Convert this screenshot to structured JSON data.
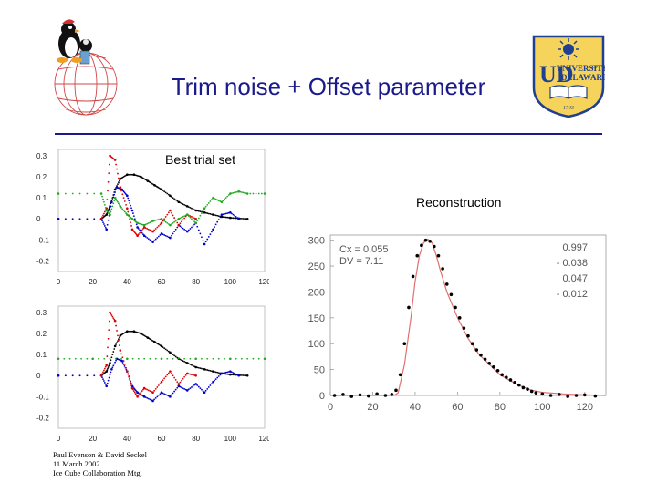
{
  "slide": {
    "title": "Trim noise + Offset parameter",
    "caption_best": "Best trial set",
    "caption_recon": "Reconstruction",
    "footer": [
      "Paul Evenson & David Seckel",
      "11 March 2002",
      "Ice Cube Collaboration Mtg."
    ]
  },
  "logo_right": {
    "words": [
      "UNIVERSITY",
      "OF",
      "DELAWARE"
    ],
    "year": "1743",
    "colors": {
      "blue": "#1f3f8f",
      "gold": "#f2c230"
    }
  },
  "chart_data": [
    {
      "type": "scatter",
      "title": "",
      "xlim": [
        0,
        120
      ],
      "ylim": [
        -0.25,
        0.33
      ],
      "x_ticks": [
        "0",
        "20",
        "40",
        "60",
        "80",
        "100",
        "120"
      ],
      "y_ticks": [
        "0.3",
        "0.2",
        "0.1",
        "0",
        "-0.1",
        "-0.2"
      ],
      "series": [
        {
          "color": "#000000",
          "x": [
            0,
            25,
            28,
            30,
            33,
            36,
            40,
            44,
            48,
            52,
            56,
            60,
            65,
            70,
            75,
            80,
            85,
            90,
            95,
            100,
            105,
            110
          ],
          "y": [
            0,
            0,
            0.02,
            0.06,
            0.14,
            0.19,
            0.21,
            0.21,
            0.2,
            0.18,
            0.16,
            0.14,
            0.11,
            0.08,
            0.06,
            0.04,
            0.03,
            0.02,
            0.01,
            0.005,
            0.002,
            0
          ]
        },
        {
          "color": "#0000cc",
          "x": [
            0,
            25,
            28,
            31,
            34,
            37,
            40,
            43,
            46,
            50,
            55,
            60,
            65,
            70,
            75,
            80,
            85,
            90,
            95,
            100,
            105
          ],
          "y": [
            0,
            0,
            -0.05,
            0.08,
            0.15,
            0.14,
            0.11,
            0.04,
            -0.04,
            -0.08,
            -0.11,
            -0.07,
            -0.09,
            -0.03,
            -0.06,
            -0.02,
            -0.12,
            -0.05,
            0.02,
            0.03,
            0
          ]
        },
        {
          "color": "#dd0000",
          "x": [
            25,
            28,
            30,
            33,
            36,
            40,
            43,
            46,
            50,
            55,
            60,
            65,
            70,
            75,
            80
          ],
          "y": [
            0,
            0.05,
            0.3,
            0.28,
            0.15,
            0.05,
            -0.05,
            -0.08,
            -0.04,
            -0.06,
            -0.02,
            0.04,
            -0.03,
            0.02,
            0
          ]
        },
        {
          "color": "#22aa22",
          "x": [
            0,
            25,
            28,
            30,
            33,
            36,
            40,
            43,
            46,
            50,
            55,
            60,
            65,
            70,
            75,
            80,
            85,
            90,
            95,
            100,
            105,
            110,
            120
          ],
          "y": [
            0.12,
            0.12,
            0.04,
            0.02,
            0.1,
            0.06,
            0.02,
            0.0,
            -0.02,
            -0.03,
            -0.01,
            0.0,
            -0.03,
            0.0,
            0.02,
            -0.02,
            0.05,
            0.1,
            0.08,
            0.12,
            0.13,
            0.12,
            0.12
          ]
        }
      ]
    },
    {
      "type": "scatter",
      "title": "",
      "xlim": [
        0,
        120
      ],
      "ylim": [
        -0.25,
        0.33
      ],
      "x_ticks": [
        "0",
        "20",
        "40",
        "60",
        "80",
        "100",
        "120"
      ],
      "y_ticks": [
        "0.3",
        "0.2",
        "0.1",
        "0",
        "-0.1",
        "-0.2"
      ],
      "series": [
        {
          "color": "#000000",
          "x": [
            0,
            25,
            28,
            30,
            33,
            36,
            40,
            44,
            48,
            52,
            56,
            60,
            65,
            70,
            75,
            80,
            85,
            90,
            95,
            100,
            105,
            110
          ],
          "y": [
            0,
            0,
            0.02,
            0.06,
            0.14,
            0.19,
            0.21,
            0.21,
            0.2,
            0.18,
            0.16,
            0.14,
            0.11,
            0.08,
            0.06,
            0.04,
            0.03,
            0.02,
            0.01,
            0.005,
            0.002,
            0
          ]
        },
        {
          "color": "#0000cc",
          "x": [
            0,
            25,
            28,
            31,
            34,
            37,
            40,
            43,
            46,
            50,
            55,
            60,
            65,
            70,
            75,
            80,
            85,
            90,
            95,
            100,
            105
          ],
          "y": [
            0,
            0,
            -0.05,
            0.03,
            0.08,
            0.07,
            0.02,
            -0.05,
            -0.08,
            -0.1,
            -0.12,
            -0.08,
            -0.1,
            -0.05,
            -0.07,
            -0.04,
            -0.08,
            -0.03,
            0.01,
            0.02,
            0
          ]
        },
        {
          "color": "#dd0000",
          "x": [
            25,
            28,
            30,
            33,
            36,
            40,
            43,
            46,
            50,
            55,
            60,
            65,
            70,
            75,
            80
          ],
          "y": [
            0,
            0.05,
            0.3,
            0.26,
            0.12,
            0.02,
            -0.06,
            -0.1,
            -0.06,
            -0.08,
            -0.03,
            0.02,
            -0.04,
            0.01,
            0
          ]
        },
        {
          "color": "#22aa22",
          "x": [
            0,
            20,
            40,
            60,
            80,
            100,
            120
          ],
          "y": [
            0.08,
            0.08,
            0.08,
            0.08,
            0.08,
            0.08,
            0.08
          ]
        }
      ]
    },
    {
      "type": "line",
      "title": "",
      "xlim": [
        0,
        130
      ],
      "ylim": [
        0,
        310
      ],
      "x_ticks": [
        "0",
        "20",
        "40",
        "60",
        "80",
        "100",
        "120"
      ],
      "y_ticks": [
        "300",
        "250",
        "200",
        "150",
        "100",
        "50",
        "0"
      ],
      "legend": {
        "cx": "0.055",
        "dv": "7.11"
      },
      "parameters": [
        "0.997",
        "- 0.038",
        "0.047",
        "- 0.012"
      ],
      "fit": {
        "color": "#e07070",
        "x": [
          0,
          30,
          32,
          35,
          38,
          40,
          42,
          44,
          46,
          48,
          50,
          52,
          55,
          60,
          65,
          70,
          75,
          80,
          85,
          90,
          95,
          100,
          110,
          120,
          130
        ],
        "y": [
          0,
          0,
          5,
          60,
          150,
          220,
          270,
          295,
          302,
          295,
          270,
          240,
          200,
          150,
          110,
          80,
          60,
          40,
          28,
          18,
          10,
          6,
          3,
          1,
          0
        ]
      },
      "points": {
        "color": "#000000",
        "x": [
          2,
          6,
          10,
          14,
          18,
          22,
          26,
          29,
          31,
          33,
          35,
          37,
          39,
          41,
          43,
          45,
          47,
          49,
          51,
          53,
          55,
          57,
          59,
          61,
          63,
          65,
          67,
          69,
          71,
          73,
          75,
          77,
          79,
          81,
          83,
          85,
          87,
          89,
          91,
          93,
          95,
          97,
          100,
          104,
          108,
          112,
          116,
          120,
          125
        ],
        "y": [
          0,
          2,
          -2,
          1,
          -1,
          3,
          0,
          2,
          10,
          40,
          100,
          170,
          230,
          270,
          290,
          300,
          298,
          288,
          270,
          245,
          215,
          195,
          170,
          150,
          130,
          115,
          100,
          88,
          78,
          70,
          62,
          55,
          48,
          40,
          35,
          30,
          25,
          20,
          15,
          12,
          8,
          5,
          3,
          0,
          2,
          -2,
          0,
          1,
          -1
        ]
      }
    }
  ]
}
